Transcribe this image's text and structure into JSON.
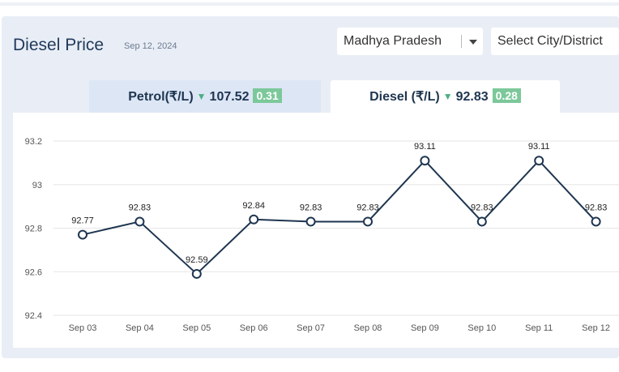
{
  "header": {
    "title": "Diesel Price",
    "date": "Sep 12, 2024",
    "state_select": "Madhya Pradesh",
    "city_select": "Select City/District"
  },
  "tabs": [
    {
      "label": "Petrol(₹/L)",
      "price": "107.52",
      "change": "0.31",
      "direction": "down"
    },
    {
      "label": "Diesel (₹/L)",
      "price": "92.83",
      "change": "0.28",
      "direction": "down"
    }
  ],
  "colors": {
    "line": "#1e3550",
    "badge": "#7cc89a",
    "arrow": "#4caf84",
    "grid": "#e6e6e6",
    "axis_text": "#555555"
  },
  "chart_data": {
    "type": "line",
    "categories": [
      "Sep 03",
      "Sep 04",
      "Sep 05",
      "Sep 06",
      "Sep 07",
      "Sep 08",
      "Sep 09",
      "Sep 10",
      "Sep 11",
      "Sep 12"
    ],
    "values": [
      92.77,
      92.83,
      92.59,
      92.84,
      92.83,
      92.83,
      93.11,
      92.83,
      93.11,
      92.83
    ],
    "yticks": [
      "92.4",
      "92.6",
      "92.8",
      "93",
      "93.2"
    ],
    "ylim": [
      92.4,
      93.2
    ],
    "grid": true,
    "title": "",
    "xlabel": "",
    "ylabel": ""
  }
}
